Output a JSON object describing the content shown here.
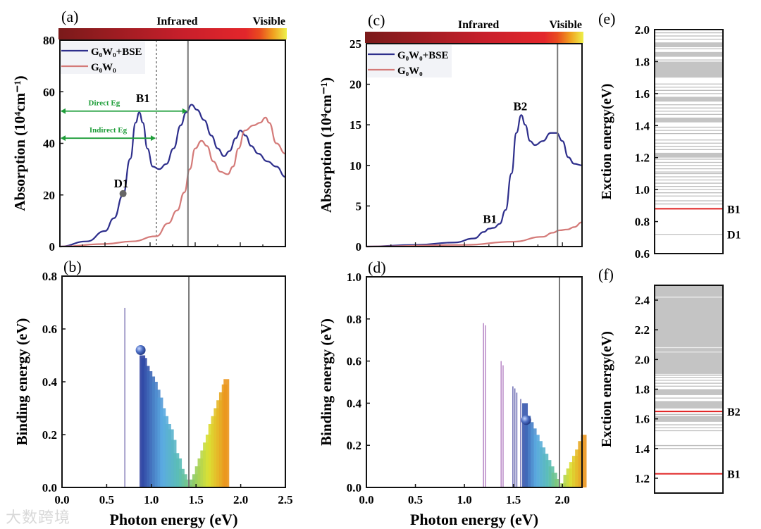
{
  "watermark": "大数跨境",
  "chart_data": [
    {
      "id": "a",
      "panel_label": "(a)",
      "type": "line",
      "xlim": [
        0,
        2.5
      ],
      "ylim": [
        0,
        80
      ],
      "ylabel": "Absorption (10⁴cm⁻¹)",
      "yticks": [
        "0",
        "20",
        "40",
        "60",
        "80"
      ],
      "ytick_values": [
        0,
        20,
        40,
        60,
        80
      ],
      "spectrum_labels": {
        "left": "Infrared",
        "right": "Visible"
      },
      "vline_solid": 1.42,
      "vline_dashed": 1.07,
      "legend": [
        "G₀W₀+BSE",
        "G₀W₀"
      ],
      "legend_position": "top-left",
      "series": [
        {
          "name": "G₀W₀+BSE",
          "color": "#2e2f8c",
          "x": [
            0,
            0.3,
            0.5,
            0.6,
            0.7,
            0.78,
            0.84,
            0.88,
            0.92,
            0.97,
            1.03,
            1.1,
            1.18,
            1.26,
            1.34,
            1.4,
            1.46,
            1.52,
            1.6,
            1.68,
            1.75,
            1.82,
            1.88,
            1.95,
            2.0,
            2.06,
            2.12,
            2.2,
            2.3,
            2.4,
            2.5
          ],
          "y": [
            0,
            2,
            6,
            11,
            20,
            34,
            48,
            52,
            48,
            38,
            31,
            30,
            32,
            38,
            47,
            52,
            55,
            53,
            49,
            43,
            38,
            35,
            37,
            42,
            45,
            43,
            39,
            36,
            33,
            31,
            27
          ]
        },
        {
          "name": "G₀W₀",
          "color": "#d47a78",
          "x": [
            0,
            0.5,
            0.8,
            1.07,
            1.2,
            1.3,
            1.38,
            1.44,
            1.5,
            1.57,
            1.63,
            1.7,
            1.78,
            1.86,
            1.92,
            1.98,
            2.05,
            2.15,
            2.22,
            2.28,
            2.32,
            2.4,
            2.5
          ],
          "y": [
            0,
            1,
            2,
            4,
            9,
            14,
            21,
            30,
            38,
            41,
            39,
            33,
            29,
            28,
            31,
            38,
            45,
            47,
            48,
            50,
            48,
            40,
            36
          ]
        }
      ],
      "annotations": [
        {
          "text": "Direct Eg",
          "from": 0,
          "to": 1.42,
          "y": 52.5,
          "color": "#1f9e3a"
        },
        {
          "text": "Indirect Eg",
          "from": 0,
          "to": 1.07,
          "y": 42,
          "color": "#1f9e3a"
        },
        {
          "text": "B1",
          "x": 0.92,
          "y": 56
        },
        {
          "text": "D1",
          "x": 0.68,
          "y": 23,
          "marker": [
            0.7,
            20.5
          ]
        }
      ]
    },
    {
      "id": "b",
      "panel_label": "(b)",
      "type": "bar",
      "xlim": [
        0,
        2.5
      ],
      "ylim": [
        0,
        0.8
      ],
      "xlabel": "Photon energy (eV)",
      "ylabel": "Binding energy (eV)",
      "xticks": [
        "0.0",
        "0.5",
        "1.0",
        "1.5",
        "2.0",
        "2.5"
      ],
      "xtick_values": [
        0,
        0.5,
        1.0,
        1.5,
        2.0,
        2.5
      ],
      "yticks": [
        "0.0",
        "0.2",
        "0.4",
        "0.6",
        "0.8"
      ],
      "ytick_values": [
        0,
        0.2,
        0.4,
        0.6,
        0.8
      ],
      "vline_solid": 1.42,
      "sphere": [
        0.88,
        0.52
      ],
      "x": [
        0.71,
        0.88,
        0.9,
        0.93,
        0.96,
        0.99,
        1.02,
        1.05,
        1.08,
        1.11,
        1.14,
        1.17,
        1.2,
        1.23,
        1.26,
        1.29,
        1.32,
        1.35,
        1.38,
        1.41,
        1.44,
        1.47,
        1.5,
        1.53,
        1.56,
        1.59,
        1.62,
        1.65,
        1.68,
        1.71,
        1.74,
        1.77,
        1.8,
        1.82
      ],
      "y": [
        0.68,
        0.5,
        0.49,
        0.46,
        0.44,
        0.42,
        0.4,
        0.37,
        0.34,
        0.3,
        0.27,
        0.24,
        0.22,
        0.18,
        0.13,
        0.11,
        0.07,
        0.05,
        0.03,
        0.01,
        0.03,
        0.05,
        0.08,
        0.11,
        0.14,
        0.17,
        0.2,
        0.24,
        0.27,
        0.3,
        0.33,
        0.36,
        0.39,
        0.41
      ]
    },
    {
      "id": "c",
      "panel_label": "(c)",
      "type": "line",
      "xlim": [
        0,
        2.2
      ],
      "ylim": [
        0,
        25
      ],
      "ylabel": "Absorption (10⁴cm⁻¹)",
      "yticks": [
        "0",
        "5",
        "10",
        "15",
        "20",
        "25"
      ],
      "ytick_values": [
        0,
        5,
        10,
        15,
        20,
        25
      ],
      "spectrum_labels": {
        "left": "Infrared",
        "right": "Visible"
      },
      "vline_solid": 1.95,
      "legend": [
        "G₀W₀+BSE",
        "G₀W₀"
      ],
      "legend_position": "top-left",
      "series": [
        {
          "name": "G₀W₀+BSE",
          "color": "#2e2f8c",
          "x": [
            0,
            0.5,
            0.9,
            1.1,
            1.2,
            1.25,
            1.3,
            1.36,
            1.42,
            1.48,
            1.53,
            1.58,
            1.62,
            1.67,
            1.72,
            1.8,
            1.88,
            1.94,
            2.0,
            2.06,
            2.12,
            2.2
          ],
          "y": [
            0,
            0.2,
            0.5,
            1,
            1.8,
            2.2,
            2.3,
            2.8,
            4.5,
            9,
            14,
            16.2,
            15,
            13,
            12.5,
            13,
            14,
            14,
            13,
            11,
            10.2,
            10
          ]
        },
        {
          "name": "G₀W₀",
          "color": "#d47a78",
          "x": [
            0,
            1.0,
            1.5,
            1.8,
            1.9,
            1.97,
            2.05,
            2.12,
            2.2
          ],
          "y": [
            0,
            0.2,
            0.6,
            1.2,
            1.7,
            2,
            2.1,
            2.4,
            3
          ]
        }
      ],
      "annotations": [
        {
          "text": "B2",
          "x": 1.57,
          "y": 16.8
        },
        {
          "text": "B1",
          "x": 1.26,
          "y": 2.9
        }
      ]
    },
    {
      "id": "d",
      "panel_label": "(d)",
      "type": "bar",
      "xlim": [
        0,
        2.2
      ],
      "ylim": [
        0,
        1.0
      ],
      "xlabel": "Photon energy (eV)",
      "ylabel": "Binding energy (eV)",
      "xticks": [
        "0.0",
        "0.5",
        "1.0",
        "1.5",
        "2.0"
      ],
      "xtick_values": [
        0,
        0.5,
        1.0,
        1.5,
        2.0
      ],
      "yticks": [
        "0.0",
        "0.2",
        "0.4",
        "0.6",
        "0.8",
        "1.0"
      ],
      "ytick_values": [
        0,
        0.2,
        0.4,
        0.6,
        0.8,
        1.0
      ],
      "vline_solid": 1.97,
      "sphere": [
        1.63,
        0.32
      ],
      "x": [
        1.2,
        1.22,
        1.38,
        1.4,
        1.5,
        1.52,
        1.54,
        1.58,
        1.6,
        1.63,
        1.66,
        1.69,
        1.72,
        1.75,
        1.78,
        1.81,
        1.84,
        1.87,
        1.9,
        1.93,
        1.99,
        2.02,
        2.05,
        2.08,
        2.11,
        2.14,
        2.17,
        2.2
      ],
      "y": [
        0.78,
        0.77,
        0.6,
        0.58,
        0.48,
        0.47,
        0.45,
        0.42,
        0.4,
        0.34,
        0.31,
        0.28,
        0.25,
        0.22,
        0.19,
        0.16,
        0.13,
        0.1,
        0.07,
        0.04,
        0.02,
        0.06,
        0.09,
        0.12,
        0.15,
        0.18,
        0.22,
        0.25
      ]
    },
    {
      "id": "e",
      "panel_label": "(e)",
      "type": "levels",
      "ylim": [
        0.6,
        2.0
      ],
      "ylabel": "Exction energy(eV)",
      "yticks": [
        "0.6",
        "0.8",
        "1.0",
        "1.2",
        "1.4",
        "1.6",
        "1.8",
        "2.0"
      ],
      "ytick_values": [
        0.6,
        0.8,
        1.0,
        1.2,
        1.4,
        1.6,
        1.8,
        2.0
      ],
      "bands": [
        [
          1.7,
          1.8
        ],
        [
          1.83,
          1.86
        ],
        [
          1.89,
          1.92
        ],
        [
          1.42,
          1.45
        ],
        [
          1.55,
          1.58
        ],
        [
          1.2,
          1.23
        ]
      ],
      "levels": [
        0.91,
        0.93,
        0.96,
        0.98,
        1.0,
        1.02,
        1.04,
        1.06,
        1.08,
        1.1,
        1.11,
        1.13,
        1.15,
        1.17,
        1.19,
        1.25,
        1.27,
        1.29,
        1.31,
        1.35,
        1.37,
        1.39,
        1.47,
        1.49,
        1.51,
        1.53,
        1.6,
        1.62,
        1.64,
        1.66,
        1.81,
        1.88,
        1.94,
        1.96,
        1.98,
        2.0
      ],
      "highlighted": [
        {
          "label": "B1",
          "energy": 0.88,
          "color": "#e02020"
        },
        {
          "label": "D1",
          "energy": 0.72,
          "color": "#b0b0b0"
        }
      ]
    },
    {
      "id": "f",
      "panel_label": "(f)",
      "type": "levels",
      "ylim": [
        1.1,
        2.5
      ],
      "ylabel": "Exction energy(eV)",
      "yticks": [
        "1.2",
        "1.4",
        "1.6",
        "1.8",
        "2.0",
        "2.2",
        "2.4"
      ],
      "ytick_values": [
        1.2,
        1.4,
        1.6,
        1.8,
        2.0,
        2.2,
        2.4
      ],
      "bands": [
        [
          1.89,
          2.5
        ],
        [
          1.58,
          1.62
        ],
        [
          1.67,
          1.72
        ],
        [
          1.76,
          1.8
        ]
      ],
      "gaps": [
        2.42,
        2.08,
        2.05,
        1.9
      ],
      "levels": [
        1.4,
        1.42,
        1.52,
        1.54,
        1.56,
        1.63,
        1.74,
        1.82,
        1.84,
        1.86,
        1.88
      ],
      "highlighted": [
        {
          "label": "B2",
          "energy": 1.65,
          "color": "#e02020"
        },
        {
          "label": "B1",
          "energy": 1.23,
          "color": "#e02020"
        }
      ]
    }
  ]
}
